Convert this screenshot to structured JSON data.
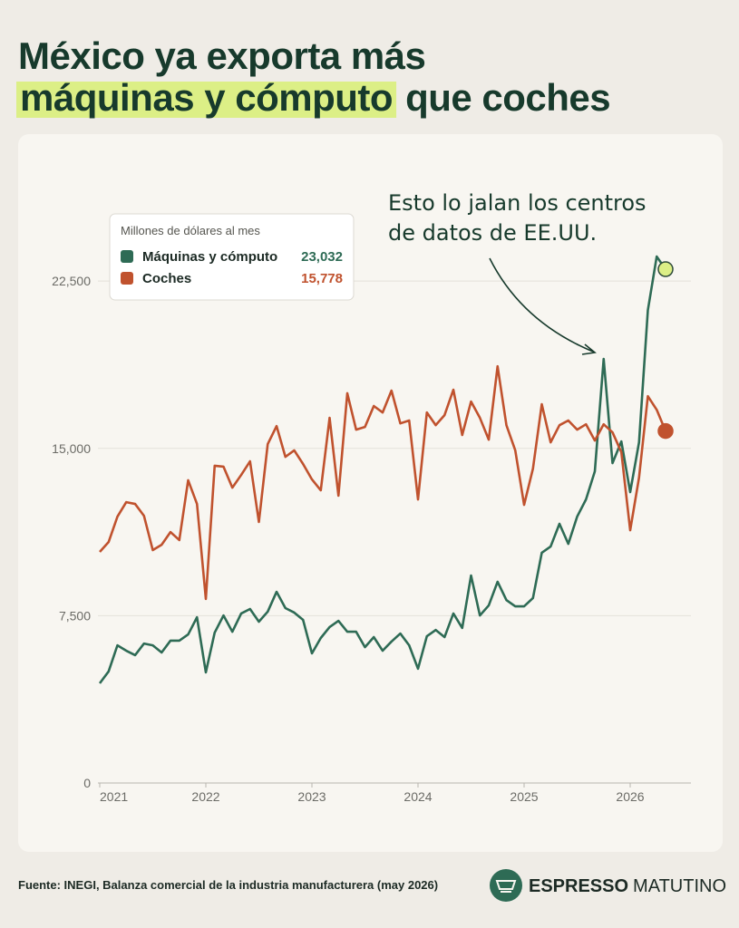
{
  "title": {
    "line1": "México ya exporta más",
    "highlight": "máquinas y cómputo",
    "line2_rest": "que coches"
  },
  "chart_data": {
    "type": "line",
    "legend_title": "Millones de dólares al mes",
    "annotation": [
      "Esto lo jalan los centros",
      "de datos de EE.UU."
    ],
    "categories": [
      "2021",
      null,
      null,
      null,
      null,
      null,
      null,
      null,
      null,
      null,
      null,
      null,
      "2022",
      null,
      null,
      null,
      null,
      null,
      null,
      null,
      null,
      null,
      null,
      null,
      "2023",
      null,
      null,
      null,
      null,
      null,
      null,
      null,
      null,
      null,
      null,
      null,
      "2024",
      null,
      null,
      null,
      null,
      null,
      null,
      null,
      null,
      null,
      null,
      null,
      "2025",
      null,
      null,
      null,
      null,
      null,
      null,
      null,
      null,
      null,
      null,
      null,
      "2026",
      null,
      null,
      null,
      null
    ],
    "ylim": [
      0,
      26000
    ],
    "yticks": [
      0,
      {
        "value": 7500,
        "label": "7,500"
      },
      {
        "value": 15000,
        "label": "15,000"
      },
      {
        "value": 22500,
        "label": "22,500"
      }
    ],
    "grid": true,
    "series": [
      {
        "name": "Máquinas y cómputo",
        "color": "#2e6b55",
        "end_marker_color": "#dcef86",
        "last_value_label": "23,032",
        "values": [
          4470,
          5000,
          6170,
          5930,
          5730,
          6250,
          6170,
          5850,
          6380,
          6380,
          6660,
          7430,
          4960,
          6740,
          7510,
          6780,
          7600,
          7800,
          7230,
          7680,
          8570,
          7840,
          7640,
          7310,
          5810,
          6500,
          6990,
          7270,
          6780,
          6780,
          6090,
          6540,
          5930,
          6340,
          6700,
          6170,
          5120,
          6580,
          6860,
          6540,
          7600,
          6950,
          9300,
          7510,
          7960,
          9020,
          8200,
          7920,
          7920,
          8290,
          10320,
          10600,
          11620,
          10720,
          11940,
          12710,
          13970,
          19010,
          14340,
          15310,
          13040,
          15270,
          21200,
          23600,
          23032
        ]
      },
      {
        "name": "Coches",
        "color": "#c0522e",
        "end_marker_color": "#c0522e",
        "last_value_label": "15,778",
        "values": [
          10360,
          10800,
          11940,
          12590,
          12510,
          11980,
          10440,
          10680,
          11250,
          10890,
          13570,
          12510,
          8250,
          14220,
          14180,
          13240,
          13810,
          14420,
          11700,
          15190,
          16000,
          14620,
          14910,
          14300,
          13610,
          13120,
          16370,
          12880,
          17470,
          15840,
          15960,
          16900,
          16610,
          17590,
          16120,
          16250,
          12710,
          16610,
          16040,
          16490,
          17630,
          15600,
          17100,
          16370,
          15390,
          18680,
          16040,
          14910,
          12470,
          14090,
          16980,
          15270,
          16040,
          16250,
          15840,
          16080,
          15350,
          16080,
          15720,
          14830,
          11330,
          13690,
          17340,
          16730,
          15778
        ]
      }
    ]
  },
  "footer": {
    "source": "Fuente: INEGI, Balanza comercial de la industria manufacturera (may 2026)",
    "brand_bold": "ESPRESSO",
    "brand_light": "MATUTINO"
  }
}
